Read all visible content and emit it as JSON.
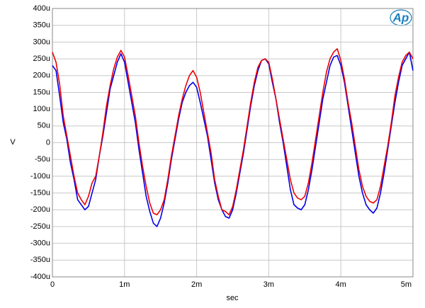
{
  "chart_data": {
    "type": "line",
    "logo": "Ap",
    "xlabel": "sec",
    "ylabel": "V",
    "x": [
      0,
      5e-05,
      0.0001,
      0.00015,
      0.0002,
      0.00025,
      0.0003,
      0.00035,
      0.0004,
      0.00045,
      0.0005,
      0.00055,
      0.0006,
      0.00065,
      0.0007,
      0.00075,
      0.0008,
      0.00085,
      0.0009,
      0.00095,
      0.001,
      0.00105,
      0.0011,
      0.00115,
      0.0012,
      0.00125,
      0.0013,
      0.00135,
      0.0014,
      0.00145,
      0.0015,
      0.00155,
      0.0016,
      0.00165,
      0.0017,
      0.00175,
      0.0018,
      0.00185,
      0.0019,
      0.00195,
      0.002,
      0.00205,
      0.0021,
      0.00215,
      0.0022,
      0.00225,
      0.0023,
      0.00235,
      0.0024,
      0.00245,
      0.0025,
      0.00255,
      0.0026,
      0.00265,
      0.0027,
      0.00275,
      0.0028,
      0.00285,
      0.0029,
      0.00295,
      0.003,
      0.00305,
      0.0031,
      0.00315,
      0.0032,
      0.00325,
      0.0033,
      0.00335,
      0.0034,
      0.00345,
      0.0035,
      0.00355,
      0.0036,
      0.00365,
      0.0037,
      0.00375,
      0.0038,
      0.00385,
      0.0039,
      0.00395,
      0.004,
      0.00405,
      0.0041,
      0.00415,
      0.0042,
      0.00425,
      0.0043,
      0.00435,
      0.0044,
      0.00445,
      0.0045,
      0.00455,
      0.0046,
      0.00465,
      0.0047,
      0.00475,
      0.0048,
      0.00485,
      0.0049,
      0.00495,
      0.005
    ],
    "series": [
      {
        "color": "#0000ee",
        "values": [
          0.00023,
          0.000215,
          0.00014,
          6e-05,
          1e-05,
          -6e-05,
          -0.00011,
          -0.00017,
          -0.000185,
          -0.0002,
          -0.00019,
          -0.00015,
          -0.00011,
          -4e-05,
          2e-05,
          9e-05,
          0.00016,
          0.0002,
          0.00024,
          0.000265,
          0.00024,
          0.00018,
          0.00012,
          6e-05,
          -2e-05,
          -9e-05,
          -0.00016,
          -0.000205,
          -0.00024,
          -0.00025,
          -0.000225,
          -0.00018,
          -0.00012,
          -5e-05,
          1e-05,
          7e-05,
          0.00012,
          0.00015,
          0.00017,
          0.00018,
          0.000165,
          0.00012,
          7e-05,
          2e-05,
          -5e-05,
          -0.00012,
          -0.00017,
          -0.0002,
          -0.00022,
          -0.000225,
          -0.0002,
          -0.00015,
          -9e-05,
          -3e-05,
          4e-05,
          0.00011,
          0.00017,
          0.000215,
          0.000245,
          0.00025,
          0.000235,
          0.00018,
          0.00013,
          6e-05,
          0,
          -7e-05,
          -0.00014,
          -0.000185,
          -0.000195,
          -0.0002,
          -0.000185,
          -0.00014,
          -8e-05,
          -1e-05,
          6e-05,
          0.00013,
          0.00018,
          0.00023,
          0.000255,
          0.00026,
          0.00023,
          0.00018,
          0.00011,
          4e-05,
          -3e-05,
          -0.0001,
          -0.00015,
          -0.000185,
          -0.0002,
          -0.00021,
          -0.000195,
          -0.00015,
          -9e-05,
          -2e-05,
          5e-05,
          0.00012,
          0.00018,
          0.00023,
          0.00025,
          0.00027,
          0.000215
        ]
      },
      {
        "color": "#ee0000",
        "values": [
          0.00027,
          0.00024,
          0.000175,
          8e-05,
          2e-05,
          -4e-05,
          -0.0001,
          -0.00015,
          -0.00017,
          -0.000185,
          -0.00016,
          -0.00012,
          -0.0001,
          -4e-05,
          3e-05,
          0.00011,
          0.00017,
          0.00022,
          0.000255,
          0.000275,
          0.000255,
          0.0002,
          0.00014,
          8e-05,
          0,
          -7e-05,
          -0.00013,
          -0.00018,
          -0.00021,
          -0.000215,
          -0.0002,
          -0.00017,
          -0.00011,
          -4e-05,
          2e-05,
          8e-05,
          0.00013,
          0.00017,
          0.0002,
          0.000215,
          0.000195,
          0.00015,
          9e-05,
          3e-05,
          -3e-05,
          -0.00011,
          -0.00016,
          -0.0002,
          -0.000205,
          -0.000215,
          -0.00019,
          -0.00014,
          -8e-05,
          -2e-05,
          5e-05,
          0.00012,
          0.00018,
          0.000225,
          0.000245,
          0.00025,
          0.00024,
          0.00019,
          0.00013,
          7e-05,
          1e-05,
          -5e-05,
          -0.00011,
          -0.00015,
          -0.000165,
          -0.00017,
          -0.00016,
          -0.00012,
          -6e-05,
          1e-05,
          8e-05,
          0.00015,
          0.00021,
          0.00025,
          0.00027,
          0.00028,
          0.000245,
          0.00019,
          0.00012,
          6e-05,
          -1e-05,
          -8e-05,
          -0.00013,
          -0.00016,
          -0.000175,
          -0.00018,
          -0.00017,
          -0.00013,
          -7e-05,
          -1e-05,
          6e-05,
          0.00014,
          0.000195,
          0.00024,
          0.00026,
          0.00027,
          0.00025
        ]
      }
    ],
    "xlim": [
      0,
      0.005
    ],
    "xticks": [
      0,
      {
        "value": 0.001,
        "label": "1m"
      },
      {
        "value": 0.002,
        "label": "2m"
      },
      {
        "value": 0.003,
        "label": "3m"
      },
      {
        "value": 0.004,
        "label": "4m"
      },
      {
        "value": 0.005,
        "label": "5m"
      }
    ],
    "ylim": [
      -0.0004,
      0.0004
    ],
    "yticks": [
      {
        "value": -0.0004,
        "label": "-400u"
      },
      {
        "value": -0.00035,
        "label": "-350u"
      },
      {
        "value": -0.0003,
        "label": "-300u"
      },
      {
        "value": -0.00025,
        "label": "-250u"
      },
      {
        "value": -0.0002,
        "label": "-200u"
      },
      {
        "value": -0.00015,
        "label": "-150u"
      },
      {
        "value": -0.0001,
        "label": "-100u"
      },
      {
        "value": -5e-05,
        "label": "-50u"
      },
      0,
      {
        "value": 5e-05,
        "label": "50u"
      },
      {
        "value": 0.0001,
        "label": "100u"
      },
      {
        "value": 0.00015,
        "label": "150u"
      },
      {
        "value": 0.0002,
        "label": "200u"
      },
      {
        "value": 0.00025,
        "label": "250u"
      },
      {
        "value": 0.0003,
        "label": "300u"
      },
      {
        "value": 0.00035,
        "label": "350u"
      },
      {
        "value": 0.0004,
        "label": "400u"
      }
    ],
    "grid": true
  }
}
